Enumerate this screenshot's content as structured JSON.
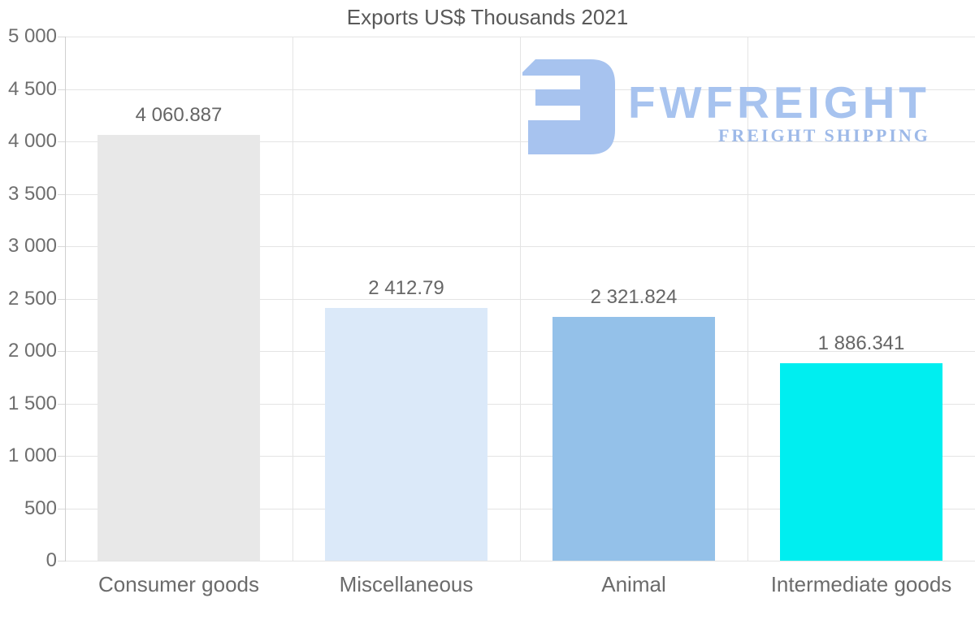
{
  "logo": {
    "name": "FWFREIGHT",
    "tagline": "FREIGHT SHIPPING",
    "color": "#a7c3ef",
    "tagline_color": "#9db9e8"
  },
  "chart_data": {
    "type": "bar",
    "title": "Exports US$ Thousands 2021",
    "categories": [
      "Consumer goods",
      "Miscellaneous",
      "Animal",
      "Intermediate goods"
    ],
    "values": [
      4060.887,
      2412.79,
      2321.824,
      1886.341
    ],
    "value_labels": [
      "4 060.887",
      "2 412.79",
      "2 321.824",
      "1 886.341"
    ],
    "bar_colors": [
      "#e8e8e8",
      "#dbe9f9",
      "#94c1e9",
      "#00eef0"
    ],
    "xlabel": "",
    "ylabel": "",
    "ylim": [
      0,
      5000
    ],
    "ytick_step": 500,
    "ytick_labels": [
      "0",
      "500",
      "1 000",
      "1 500",
      "2 000",
      "2 500",
      "3 000",
      "3 500",
      "4 000",
      "4 500",
      "5 000"
    ],
    "grid": true,
    "legend": false,
    "colors": {
      "grid": "#e4e4e4",
      "axis": "#cfcfcf",
      "title_text": "#595959",
      "tick_text": "#6e6e6e",
      "value_text": "#666666",
      "category_text": "#6b6b6b"
    }
  }
}
